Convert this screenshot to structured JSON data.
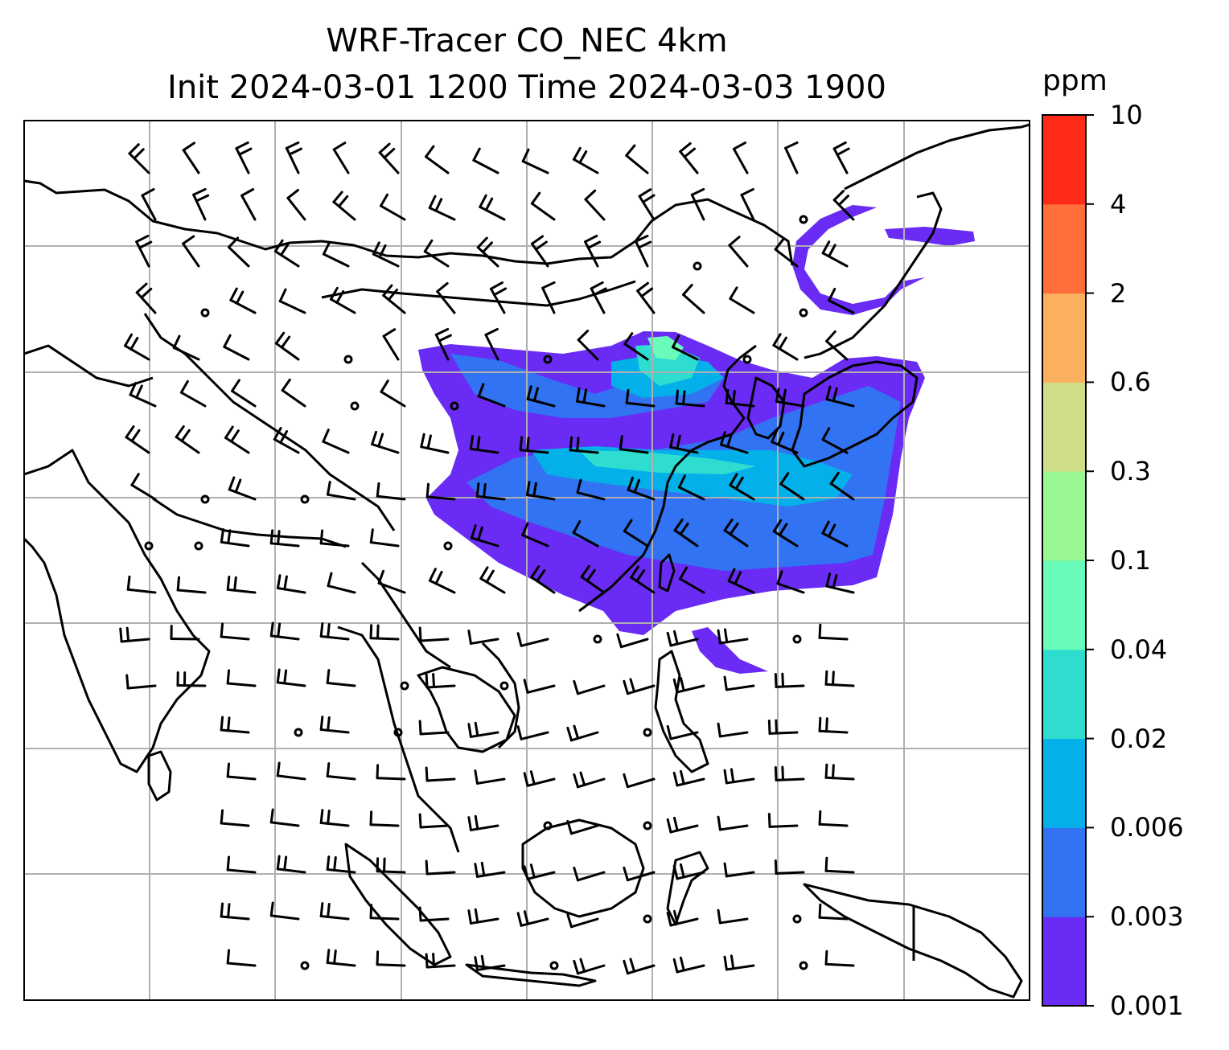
{
  "title": {
    "line1": "WRF-Tracer CO_NEC 4km",
    "line2": "Init 2024-03-01 1200 Time 2024-03-03 1900"
  },
  "colorbar": {
    "unit": "ppm",
    "levels": [
      "0.001",
      "0.003",
      "0.006",
      "0.02",
      "0.04",
      "0.1",
      "0.3",
      "0.6",
      "2",
      "4",
      "10"
    ],
    "colors": [
      "#6a2cf5",
      "#3173f2",
      "#04b0ea",
      "#2fddd0",
      "#68fbb9",
      "#98f791",
      "#cede87",
      "#fbb060",
      "#ff6e3a",
      "#ff2b18"
    ]
  },
  "map": {
    "gridlines": true,
    "coastline_color": "#000000",
    "grid_color": "#b0b0b0",
    "features": [
      "coastlines",
      "country-borders",
      "wind-barbs",
      "co-tracer-plume"
    ]
  }
}
